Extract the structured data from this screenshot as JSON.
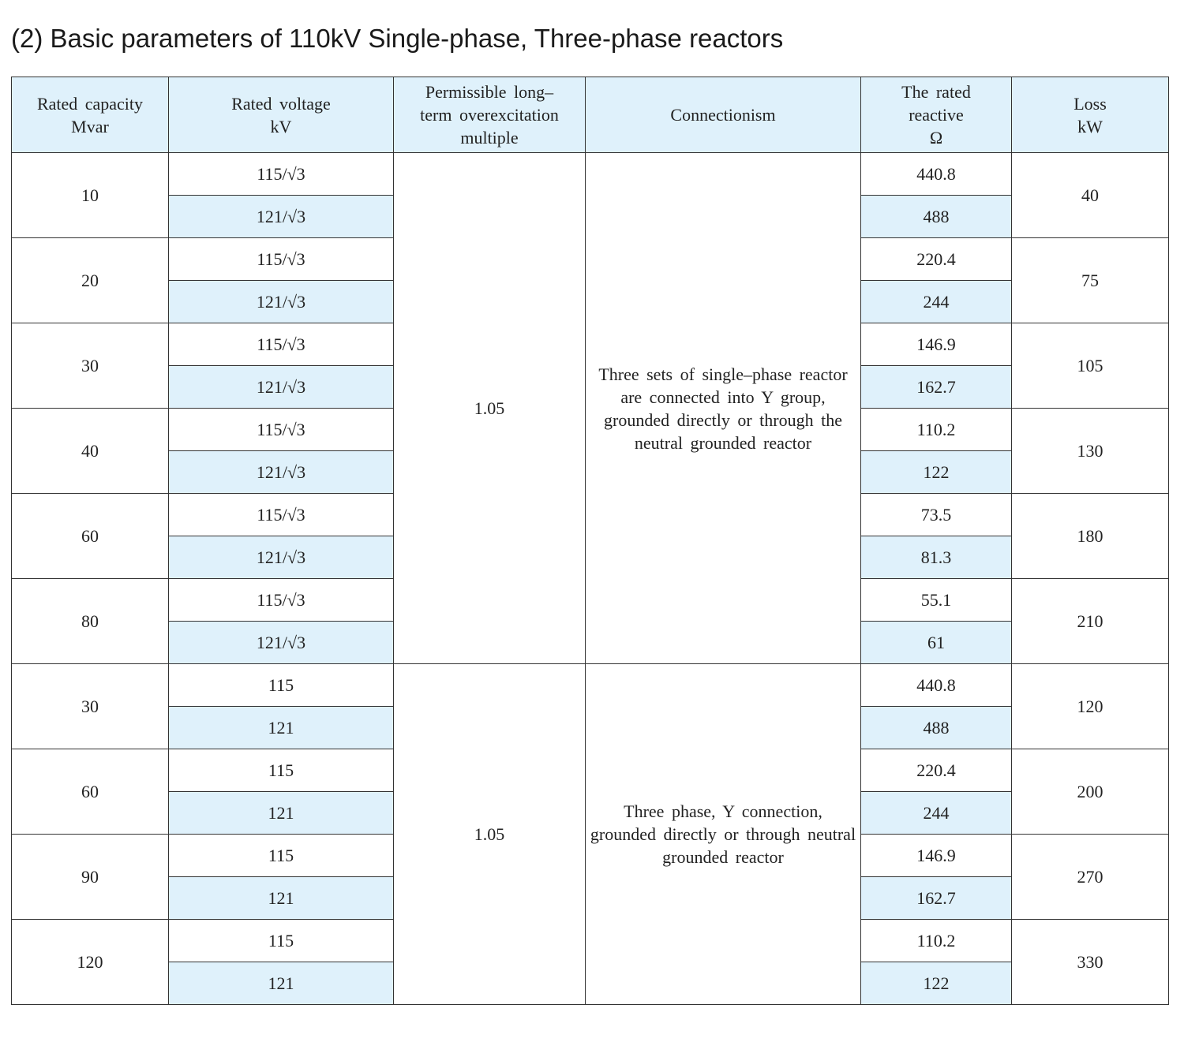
{
  "title": "(2) Basic parameters of 110kV Single-phase, Three-phase reactors",
  "headers": [
    "Rated capacity\nMvar",
    "Rated voltage\nkV",
    "Permissible long–\nterm overexcitation\nmultiple",
    "Connectionism",
    "The rated\nreactive\nΩ",
    "Loss\nkW"
  ],
  "colors": {
    "header_bg": "#dff1fb",
    "alt_row_bg": "#dff1fb",
    "border": "#333333"
  },
  "sections": [
    {
      "multiple": "1.05",
      "connection": "Three sets of single–phase reactor are connected into Y group, grounded directly or through the neutral grounded reactor",
      "groups": [
        {
          "capacity": "10",
          "voltages": [
            "115/√3",
            "121/√3"
          ],
          "reactance": [
            "440.8",
            "488"
          ],
          "loss": "40"
        },
        {
          "capacity": "20",
          "voltages": [
            "115/√3",
            "121/√3"
          ],
          "reactance": [
            "220.4",
            "244"
          ],
          "loss": "75"
        },
        {
          "capacity": "30",
          "voltages": [
            "115/√3",
            "121/√3"
          ],
          "reactance": [
            "146.9",
            "162.7"
          ],
          "loss": "105"
        },
        {
          "capacity": "40",
          "voltages": [
            "115/√3",
            "121/√3"
          ],
          "reactance": [
            "110.2",
            "122"
          ],
          "loss": "130"
        },
        {
          "capacity": "60",
          "voltages": [
            "115/√3",
            "121/√3"
          ],
          "reactance": [
            "73.5",
            "81.3"
          ],
          "loss": "180"
        },
        {
          "capacity": "80",
          "voltages": [
            "115/√3",
            "121/√3"
          ],
          "reactance": [
            "55.1",
            "61"
          ],
          "loss": "210"
        }
      ]
    },
    {
      "multiple": "1.05",
      "connection": "Three phase, Y connection, grounded directly or through neutral grounded reactor",
      "groups": [
        {
          "capacity": "30",
          "voltages": [
            "115",
            "121"
          ],
          "reactance": [
            "440.8",
            "488"
          ],
          "loss": "120"
        },
        {
          "capacity": "60",
          "voltages": [
            "115",
            "121"
          ],
          "reactance": [
            "220.4",
            "244"
          ],
          "loss": "200"
        },
        {
          "capacity": "90",
          "voltages": [
            "115",
            "121"
          ],
          "reactance": [
            "146.9",
            "162.7"
          ],
          "loss": "270"
        },
        {
          "capacity": "120",
          "voltages": [
            "115",
            "121"
          ],
          "reactance": [
            "110.2",
            "122"
          ],
          "loss": "330"
        }
      ]
    }
  ]
}
